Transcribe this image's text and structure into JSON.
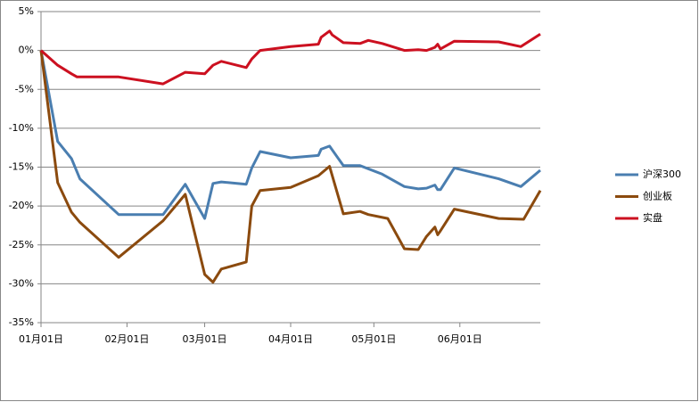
{
  "chart_data": {
    "type": "line",
    "xlim": [
      "01-01",
      "06-30"
    ],
    "xticks": [
      {
        "value": "01-01",
        "label": "01月01日"
      },
      {
        "value": "02-01",
        "label": "02月01日"
      },
      {
        "value": "03-01",
        "label": "03月01日"
      },
      {
        "value": "04-01",
        "label": "04月01日"
      },
      {
        "value": "05-01",
        "label": "05月01日"
      },
      {
        "value": "06-01",
        "label": "06月01日"
      }
    ],
    "ylim": [
      -35,
      5
    ],
    "yticks": [
      {
        "value": 5,
        "label": "5%"
      },
      {
        "value": 0,
        "label": "0%"
      },
      {
        "value": -5,
        "label": "-5%"
      },
      {
        "value": -10,
        "label": "-10%"
      },
      {
        "value": -15,
        "label": "-15%"
      },
      {
        "value": -20,
        "label": "-20%"
      },
      {
        "value": -25,
        "label": "-25%"
      },
      {
        "value": -30,
        "label": "-30%"
      },
      {
        "value": -35,
        "label": "-35%"
      }
    ],
    "grid": true,
    "legend": "right",
    "series": [
      {
        "name": "沪深300",
        "color": "#4a7eb0",
        "x": [
          "01-01",
          "01-07",
          "01-12",
          "01-15",
          "01-29",
          "02-14",
          "02-22",
          "03-01",
          "03-04",
          "03-07",
          "03-16",
          "03-18",
          "03-21",
          "04-01",
          "04-11",
          "04-12",
          "04-15",
          "04-20",
          "04-26",
          "05-04",
          "05-12",
          "05-17",
          "05-20",
          "05-23",
          "05-24",
          "05-25",
          "05-30",
          "06-15",
          "06-23",
          "06-30"
        ],
        "values": [
          0,
          -11.7,
          -13.9,
          -16.5,
          -21.1,
          -21.1,
          -17.2,
          -21.6,
          -17.1,
          -16.9,
          -17.2,
          -15.1,
          -13.0,
          -13.8,
          -13.5,
          -12.7,
          -12.3,
          -14.8,
          -14.8,
          -15.9,
          -17.5,
          -17.8,
          -17.7,
          -17.3,
          -17.9,
          -17.9,
          -15.1,
          -16.5,
          -17.5,
          -15.4
        ]
      },
      {
        "name": "创业板",
        "color": "#8b4a0e",
        "x": [
          "01-01",
          "01-07",
          "01-12",
          "01-15",
          "01-29",
          "02-14",
          "02-22",
          "03-01",
          "03-04",
          "03-07",
          "03-16",
          "03-18",
          "03-21",
          "04-01",
          "04-11",
          "04-15",
          "04-20",
          "04-26",
          "04-29",
          "05-06",
          "05-12",
          "05-17",
          "05-20",
          "05-23",
          "05-24",
          "05-25",
          "05-30",
          "06-15",
          "06-24",
          "06-30"
        ],
        "values": [
          0,
          -17.0,
          -20.8,
          -22.1,
          -26.6,
          -21.9,
          -18.5,
          -28.8,
          -29.8,
          -28.1,
          -27.2,
          -20.0,
          -18.0,
          -17.6,
          -16.1,
          -14.9,
          -21.0,
          -20.7,
          -21.1,
          -21.6,
          -25.5,
          -25.6,
          -23.9,
          -22.7,
          -23.7,
          -23.2,
          -20.4,
          -21.6,
          -21.7,
          -18.0
        ]
      },
      {
        "name": "实盘",
        "color": "#cc1020",
        "x": [
          "01-01",
          "01-07",
          "01-12",
          "01-14",
          "01-29",
          "02-14",
          "02-22",
          "03-01",
          "03-04",
          "03-07",
          "03-16",
          "03-18",
          "03-21",
          "04-01",
          "04-11",
          "04-12",
          "04-15",
          "04-16",
          "04-20",
          "04-26",
          "04-29",
          "05-04",
          "05-12",
          "05-17",
          "05-20",
          "05-23",
          "05-24",
          "05-25",
          "05-30",
          "06-15",
          "06-23",
          "06-30"
        ],
        "values": [
          0,
          -1.9,
          -3.0,
          -3.4,
          -3.4,
          -4.3,
          -2.8,
          -3.0,
          -1.9,
          -1.4,
          -2.2,
          -1.1,
          0,
          0.5,
          0.8,
          1.7,
          2.5,
          2.0,
          1.0,
          0.9,
          1.3,
          0.9,
          0,
          0.1,
          0,
          0.4,
          0.8,
          0.2,
          1.2,
          1.1,
          0.5,
          2.1
        ]
      }
    ]
  }
}
